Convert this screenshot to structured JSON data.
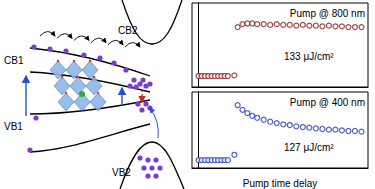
{
  "diagram": {
    "labels": [
      "CB1",
      "CB2",
      "VB1",
      "VB2"
    ]
  },
  "chart_data": [
    {
      "type": "scatter",
      "annotations": [
        "Pump @ 800 nm",
        "133 μJ/cm²"
      ],
      "x": [
        0,
        2,
        4,
        6,
        8,
        10,
        12,
        14,
        16,
        18,
        22,
        24,
        27,
        30,
        33,
        36,
        40,
        44,
        48,
        52,
        56,
        60,
        64,
        68,
        72,
        76,
        80,
        84,
        88,
        92,
        96,
        100
      ],
      "values": [
        0.15,
        0.15,
        0.15,
        0.15,
        0.15,
        0.15,
        0.15,
        0.15,
        0.15,
        0.15,
        0.16,
        0.82,
        0.86,
        0.87,
        0.87,
        0.86,
        0.86,
        0.85,
        0.86,
        0.85,
        0.85,
        0.84,
        0.85,
        0.84,
        0.84,
        0.83,
        0.84,
        0.83,
        0.83,
        0.82,
        0.82,
        0.82
      ],
      "color": "#8b1a1a",
      "marker": "circle-open",
      "xlim": [
        -4,
        104
      ],
      "ylim": [
        0,
        1.15
      ],
      "tick_labels": false,
      "grid": false
    },
    {
      "type": "scatter",
      "annotations": [
        "Pump @ 400 nm",
        "127 μJ/cm²"
      ],
      "xlabel": "Pump time delay",
      "x": [
        0,
        2,
        4,
        6,
        8,
        10,
        12,
        14,
        16,
        18,
        22,
        24,
        27,
        30,
        33,
        36,
        40,
        44,
        48,
        52,
        56,
        60,
        64,
        68,
        72,
        76,
        80,
        84,
        88,
        92,
        96,
        100
      ],
      "values": [
        0.12,
        0.12,
        0.12,
        0.12,
        0.12,
        0.12,
        0.12,
        0.12,
        0.12,
        0.12,
        0.2,
        0.95,
        0.88,
        0.83,
        0.79,
        0.76,
        0.73,
        0.7,
        0.68,
        0.66,
        0.65,
        0.63,
        0.62,
        0.61,
        0.6,
        0.59,
        0.58,
        0.58,
        0.57,
        0.56,
        0.56,
        0.55
      ],
      "color": "#2138b8",
      "marker": "circle-open",
      "xlim": [
        -4,
        104
      ],
      "ylim": [
        0,
        1.15
      ],
      "tick_labels": false,
      "grid": false
    }
  ]
}
